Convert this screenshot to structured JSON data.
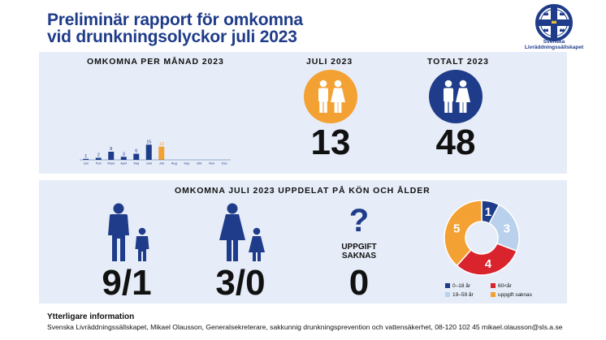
{
  "title": {
    "line1": "Preliminär rapport för omkomna",
    "line2": "vid drunkningsolyckor juli 2023"
  },
  "logo": {
    "line1": "Svenska",
    "line2": "Livräddningssällskapet",
    "colors": {
      "navy": "#1f3c8a",
      "yellow": "#f2c230"
    }
  },
  "monthly": {
    "heading": "OMKOMNA PER MÅNAD 2023",
    "chart_data": {
      "type": "bar",
      "categories": [
        "Jan",
        "Feb",
        "Mars",
        "April",
        "Maj",
        "Juni",
        "Juli",
        "Aug",
        "Sep",
        "Okt",
        "Nov",
        "Dec"
      ],
      "values": [
        1,
        2,
        8,
        3,
        6,
        15,
        13,
        null,
        null,
        null,
        null,
        null
      ],
      "highlight_index": 6,
      "colors": {
        "default": "#1f3c8a",
        "highlight": "#f4a133"
      }
    }
  },
  "july": {
    "heading": "JULI 2023",
    "value": "13",
    "icon": "man-woman-icon",
    "color": "#f4a133"
  },
  "total": {
    "heading": "TOTALT 2023",
    "value": "48",
    "icon": "man-woman-icon",
    "color": "#1f3c8a"
  },
  "breakdown": {
    "heading": "OMKOMNA JULI 2023 UPPDELAT PÅ KÖN OCH ÅLDER",
    "men": {
      "value": "9/1",
      "icon": "man-boy-icon"
    },
    "women": {
      "value": "3/0",
      "icon": "woman-girl-icon"
    },
    "unknown": {
      "label_line1": "UPPGIFT",
      "label_line2": "SAKNAS",
      "value": "0",
      "icon": "question-mark-icon"
    },
    "chart_data": {
      "type": "pie",
      "donut": true,
      "labels": [
        "0–18 år",
        "19–59 år",
        "60<år",
        "uppgift saknas"
      ],
      "values": [
        1,
        3,
        4,
        5
      ],
      "colors": [
        "#1f3c8a",
        "#b9d1ec",
        "#d9232d",
        "#f4a133"
      ],
      "label_colors": [
        "#ffffff",
        "#ffffff",
        "#ffffff",
        "#ffffff"
      ]
    },
    "legend": [
      {
        "label": "0–18 år",
        "color": "#1f3c8a"
      },
      {
        "label": "60<år",
        "color": "#d9232d"
      },
      {
        "label": "19–59 år",
        "color": "#b9d1ec"
      },
      {
        "label": "uppgift saknas",
        "color": "#f4a133"
      }
    ]
  },
  "footer": {
    "heading": "Ytterligare information",
    "text": "Svenska Livräddningssällskapet, Mikael Olausson, Generalsekreterare, sakkunnig drunkningsprevention och vattensäkerhet, 08-120 102 45  mikael.olausson@sls.a.se"
  }
}
